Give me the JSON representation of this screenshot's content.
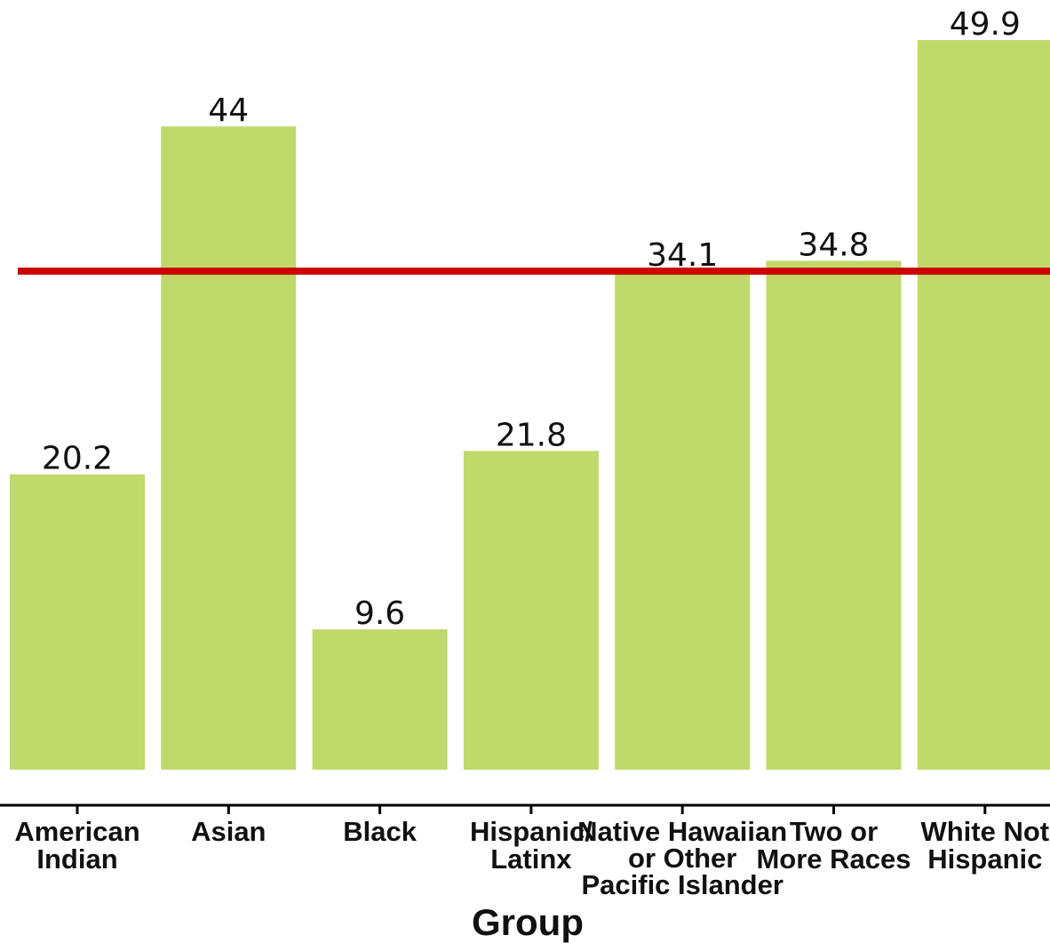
{
  "chart_data": {
    "type": "bar",
    "title": "",
    "xlabel": "Group",
    "ylabel": "",
    "categories": [
      [
        "American",
        "Indian"
      ],
      [
        "Asian"
      ],
      [
        "Black"
      ],
      [
        "Hispanic/",
        "Latinx"
      ],
      [
        "Native Hawaiian",
        "or Other",
        "Pacific Islander"
      ],
      [
        "Two or",
        "More Races"
      ],
      [
        "White Not",
        "Hispanic"
      ]
    ],
    "values": [
      20.2,
      44,
      9.6,
      21.8,
      34.1,
      34.8,
      49.9
    ],
    "value_labels": [
      "20.2",
      "44",
      "9.6",
      "21.8",
      "34.1",
      "34.8",
      "49.9"
    ],
    "reference_line": {
      "value": 34.1,
      "color": "#cc0000"
    },
    "bar_color": "#bfd96a",
    "ylim": [
      0,
      50
    ],
    "grid": false,
    "legend": "none"
  }
}
